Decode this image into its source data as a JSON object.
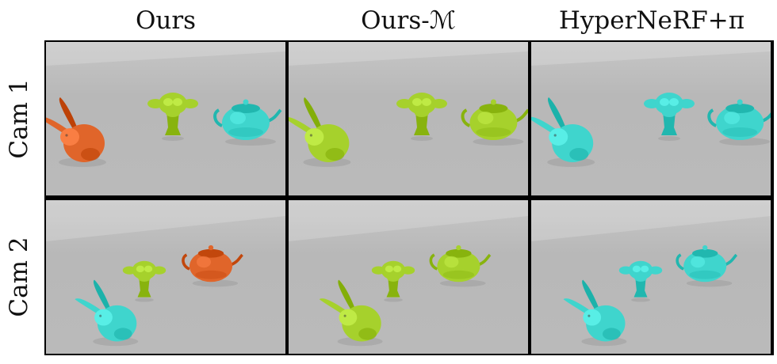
{
  "columns": [
    {
      "label": "Ours"
    },
    {
      "label": "Ours-ℳ"
    },
    {
      "label": "HyperNeRF+π"
    }
  ],
  "rows": [
    {
      "label": "Cam 1"
    },
    {
      "label": "Cam 2"
    }
  ],
  "colors": {
    "orange": "#e0652a",
    "lime": "#a6d12c",
    "cyan": "#3fd5cd",
    "background": "#b8b8b8"
  },
  "panels": [
    [
      {
        "bunny": "orange",
        "monkey": "lime",
        "teapot": "cyan"
      },
      {
        "bunny": "lime",
        "monkey": "lime",
        "teapot": "lime"
      },
      {
        "bunny": "cyan",
        "monkey": "cyan",
        "teapot": "cyan"
      }
    ],
    [
      {
        "bunny": "cyan",
        "monkey": "lime",
        "teapot": "orange"
      },
      {
        "bunny": "lime",
        "monkey": "lime",
        "teapot": "lime"
      },
      {
        "bunny": "cyan",
        "monkey": "cyan",
        "teapot": "cyan"
      }
    ]
  ]
}
